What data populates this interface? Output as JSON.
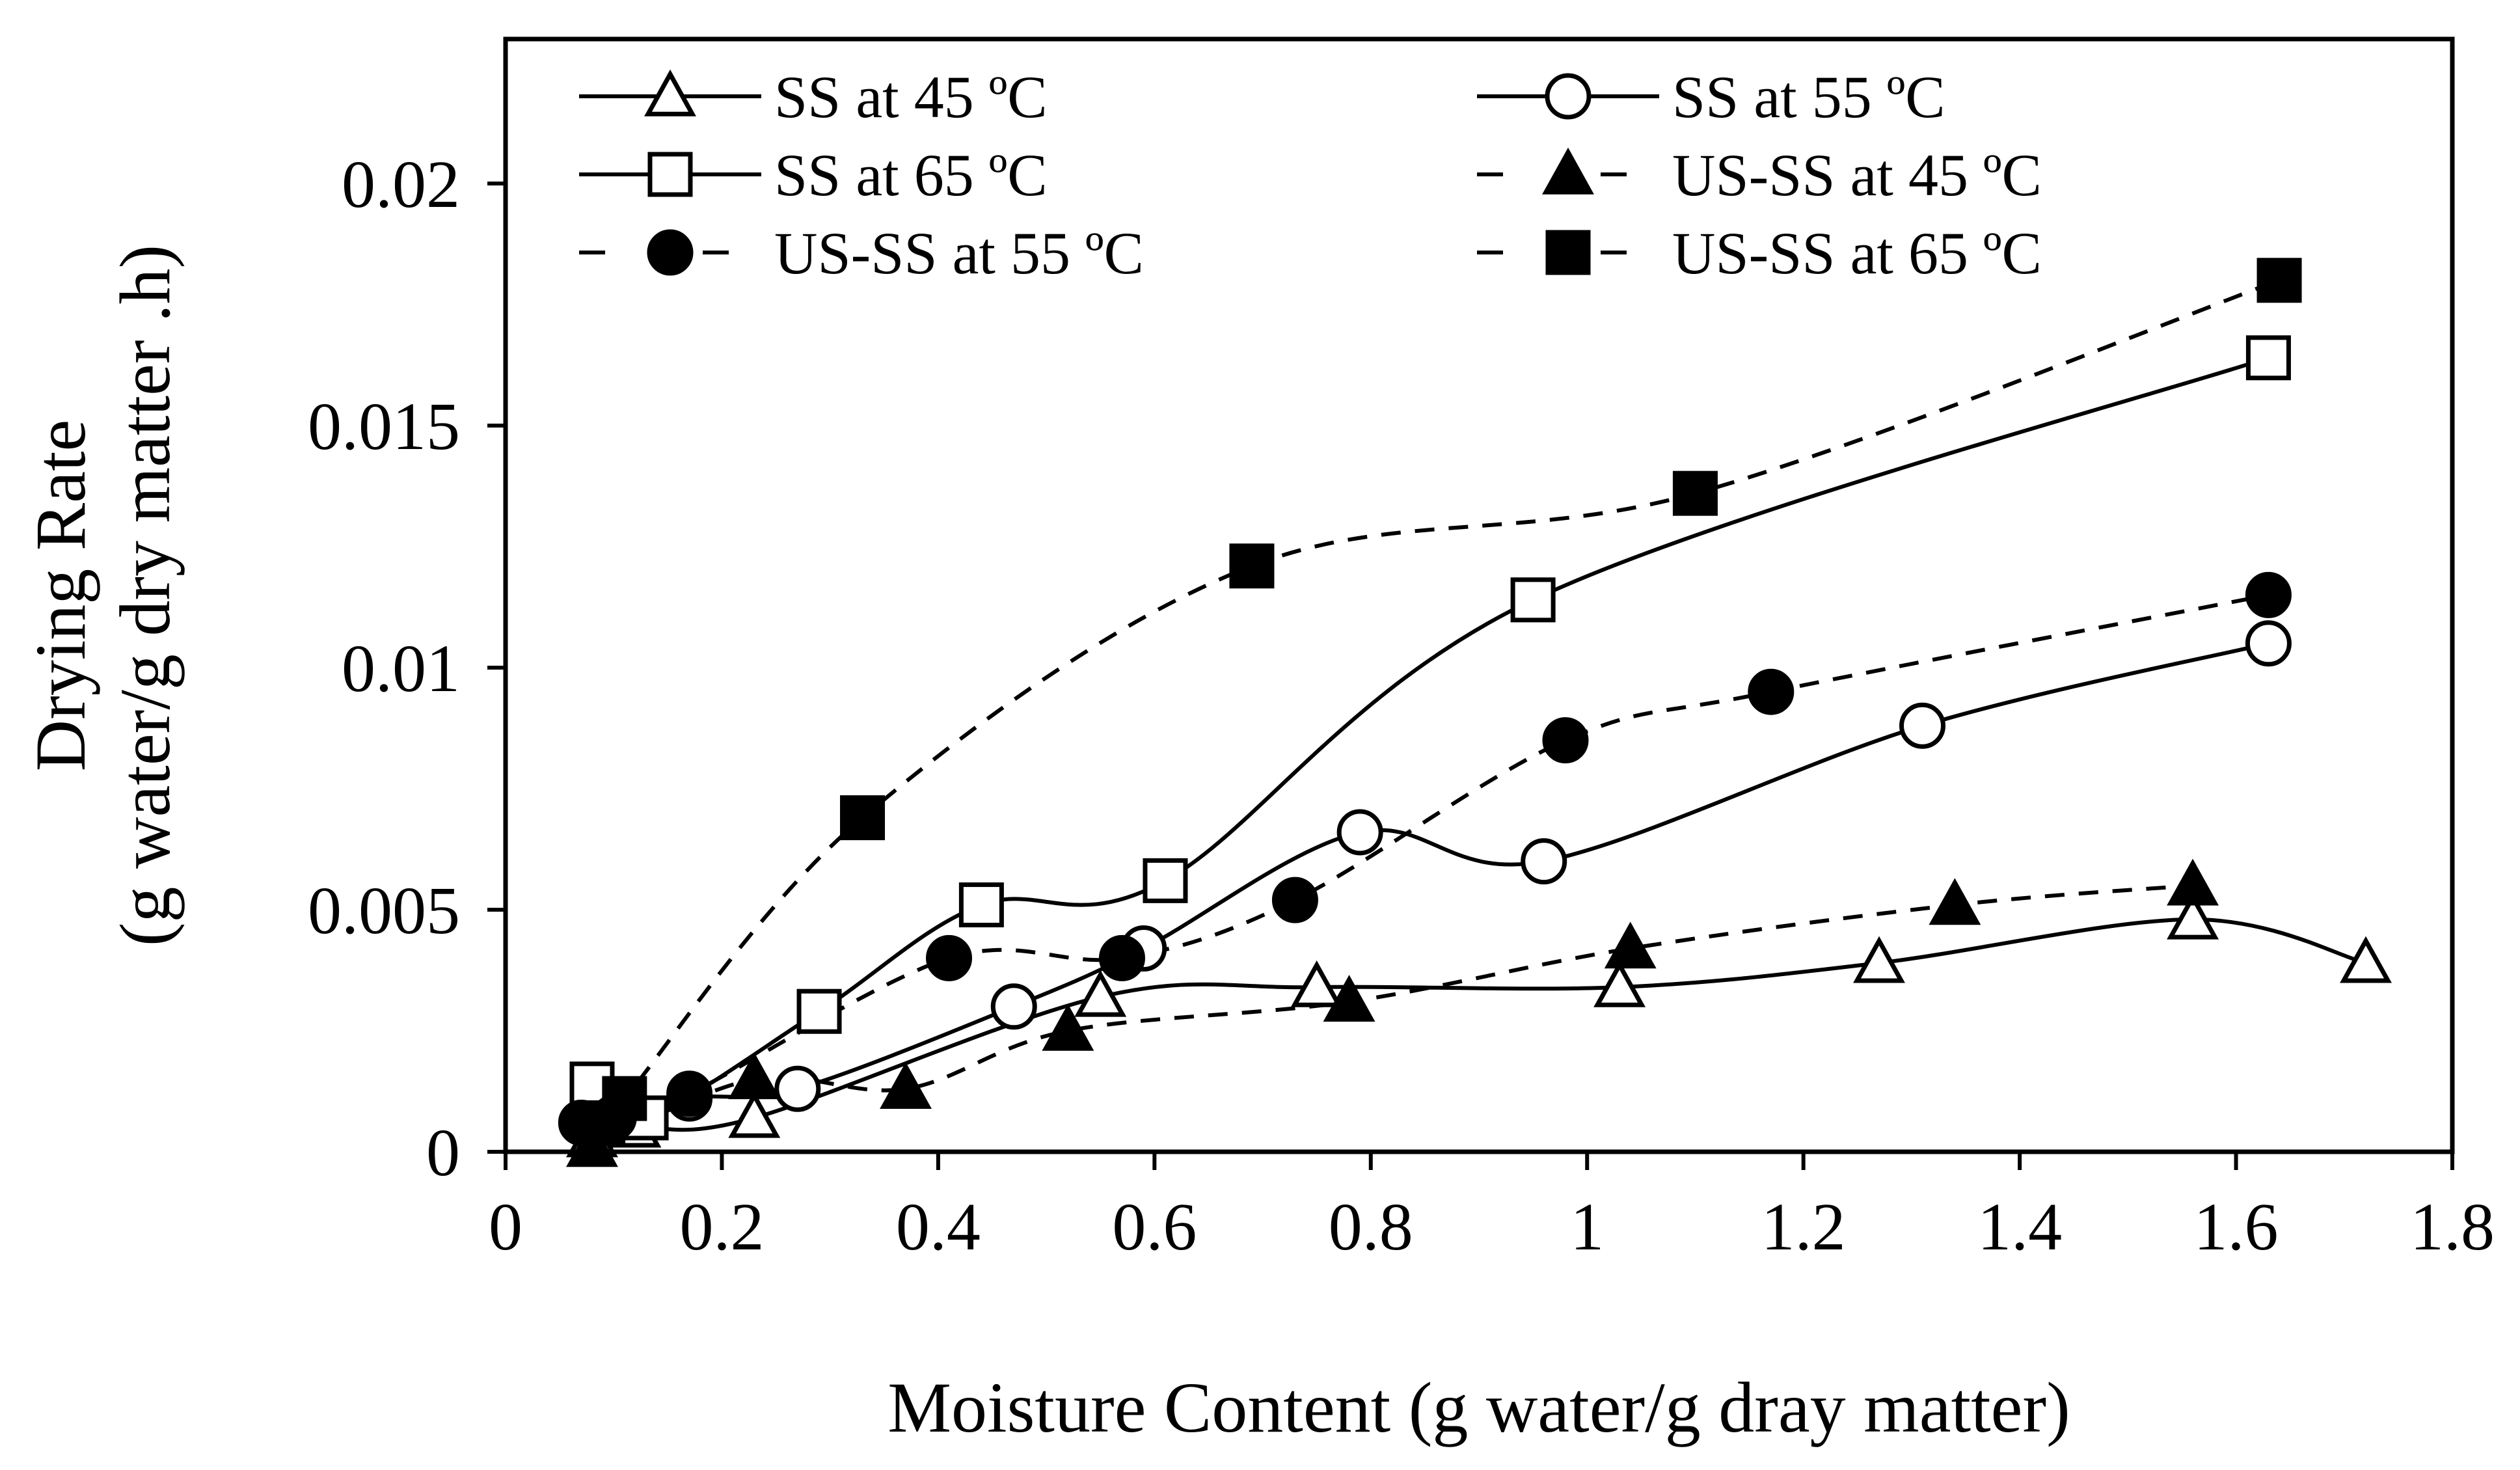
{
  "chart_data": {
    "type": "line",
    "title": "",
    "xlabel": "Moisture Content (g water/g dray matter)",
    "ylabel_line1": "Drying Rate",
    "ylabel_line2": "(g water/g dry matter .h)",
    "xlim": [
      0,
      1.8
    ],
    "ylim": [
      0,
      0.023
    ],
    "x_ticks": [
      0,
      0.2,
      0.4,
      0.6,
      0.8,
      1,
      1.2,
      1.4,
      1.6,
      1.8
    ],
    "x_tick_labels": [
      "0",
      "0.2",
      "0.4",
      "0.6",
      "0.8",
      "1",
      "1.2",
      "1.4",
      "1.6",
      "1.8"
    ],
    "y_ticks": [
      0,
      0.005,
      0.01,
      0.015,
      0.02
    ],
    "y_tick_labels": [
      "0",
      "0.005",
      "0.01",
      "0.015",
      "0.02"
    ],
    "grid": false,
    "legend_position": "top",
    "series": [
      {
        "name": "SS at 45 ºC",
        "marker": "triangle-open",
        "line": "solid",
        "points": [
          [
            0.08,
            0.0003
          ],
          [
            0.12,
            0.0005
          ],
          [
            0.23,
            0.0007
          ],
          [
            0.55,
            0.0032
          ],
          [
            0.75,
            0.0034
          ],
          [
            1.03,
            0.0034
          ],
          [
            1.27,
            0.0039
          ],
          [
            1.56,
            0.0048
          ],
          [
            1.72,
            0.0039
          ]
        ]
      },
      {
        "name": "SS at 55 ºC",
        "marker": "circle-open",
        "line": "solid",
        "points": [
          [
            0.08,
            0.0005
          ],
          [
            0.17,
            0.0011
          ],
          [
            0.27,
            0.0013
          ],
          [
            0.47,
            0.003
          ],
          [
            0.59,
            0.0042
          ],
          [
            0.79,
            0.0066
          ],
          [
            0.96,
            0.006
          ],
          [
            1.31,
            0.0088
          ],
          [
            1.63,
            0.0105
          ]
        ]
      },
      {
        "name": "SS at 65 ºC",
        "marker": "square-open",
        "line": "solid",
        "points": [
          [
            0.08,
            0.0014
          ],
          [
            0.13,
            0.0007
          ],
          [
            0.29,
            0.0029
          ],
          [
            0.44,
            0.0051
          ],
          [
            0.61,
            0.0056
          ],
          [
            0.95,
            0.0114
          ],
          [
            1.63,
            0.0164
          ]
        ]
      },
      {
        "name": "US-SS at 45 ºC",
        "marker": "triangle-filled",
        "line": "dashed",
        "points": [
          [
            0.08,
            0.0001
          ],
          [
            0.23,
            0.0015
          ],
          [
            0.37,
            0.0013
          ],
          [
            0.52,
            0.0025
          ],
          [
            0.78,
            0.0031
          ],
          [
            1.04,
            0.0042
          ],
          [
            1.34,
            0.0051
          ],
          [
            1.56,
            0.0055
          ]
        ]
      },
      {
        "name": "US-SS at 55 ºC",
        "marker": "circle-filled",
        "line": "dashed",
        "points": [
          [
            0.07,
            0.0006
          ],
          [
            0.1,
            0.0007
          ],
          [
            0.17,
            0.0012
          ],
          [
            0.41,
            0.004
          ],
          [
            0.57,
            0.004
          ],
          [
            0.73,
            0.0052
          ],
          [
            0.98,
            0.0085
          ],
          [
            1.17,
            0.0095
          ],
          [
            1.63,
            0.0115
          ]
        ]
      },
      {
        "name": "US-SS at 65 ºC",
        "marker": "square-filled",
        "line": "dashed",
        "points": [
          [
            0.09,
            0.0006
          ],
          [
            0.11,
            0.0011
          ],
          [
            0.33,
            0.0069
          ],
          [
            0.69,
            0.0121
          ],
          [
            1.1,
            0.0136
          ],
          [
            1.64,
            0.018
          ]
        ]
      }
    ]
  }
}
